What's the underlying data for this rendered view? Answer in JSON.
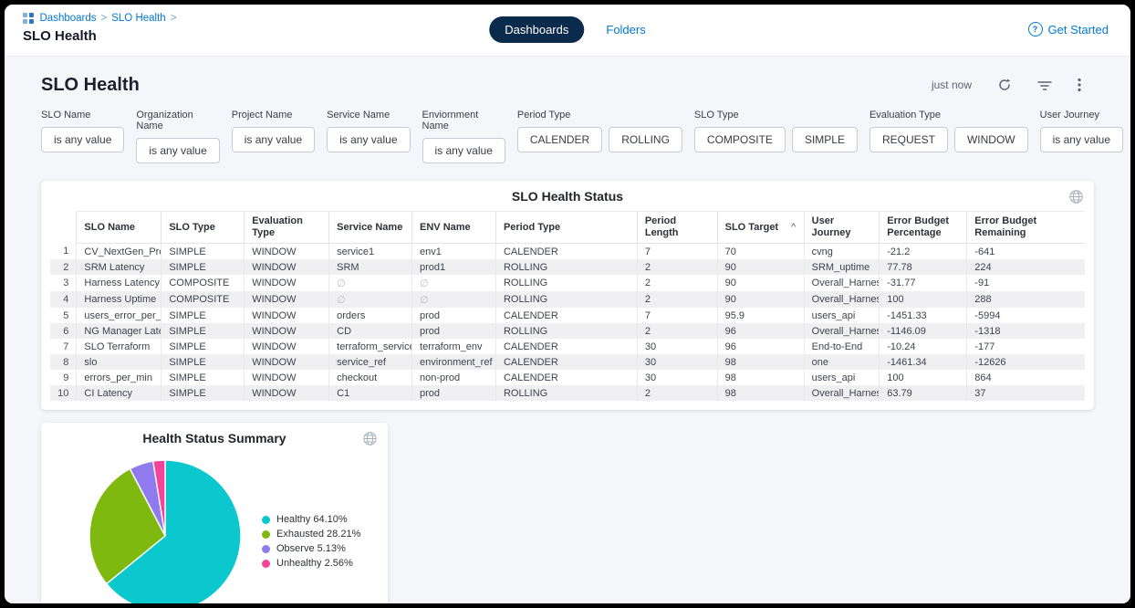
{
  "header": {
    "breadcrumb": {
      "items": [
        "Dashboards",
        "SLO Health"
      ],
      "separator": ">"
    },
    "page_title": "SLO Health",
    "tabs": [
      {
        "label": "Dashboards",
        "active": true
      },
      {
        "label": "Folders",
        "active": false
      }
    ],
    "get_started": "Get Started"
  },
  "toolbar": {
    "title": "SLO Health",
    "refreshed": "just now"
  },
  "filters": [
    {
      "label": "SLO Name",
      "buttons": [
        "is any value"
      ]
    },
    {
      "label": "Organization Name",
      "buttons": [
        "is any value"
      ]
    },
    {
      "label": "Project Name",
      "buttons": [
        "is any value"
      ]
    },
    {
      "label": "Service Name",
      "buttons": [
        "is any value"
      ]
    },
    {
      "label": "Enviornment Name",
      "buttons": [
        "is any value"
      ]
    },
    {
      "label": "Period Type",
      "buttons": [
        "CALENDER",
        "ROLLING"
      ]
    },
    {
      "label": "SLO Type",
      "buttons": [
        "COMPOSITE",
        "SIMPLE"
      ]
    },
    {
      "label": "Evaluation Type",
      "buttons": [
        "REQUEST",
        "WINDOW"
      ]
    },
    {
      "label": "User Journey",
      "buttons": [
        "is any value"
      ]
    }
  ],
  "table": {
    "title": "SLO Health Status",
    "columns": [
      "SLO Name",
      "SLO Type",
      "Evaluation Type",
      "Service Name",
      "ENV Name",
      "Period Type",
      "Period Length",
      "SLO Target",
      "User Journey",
      "Error Budget Percentage",
      "Error Budget Remaining"
    ],
    "sort": {
      "column": "SLO Target",
      "indicator": "^"
    },
    "null_symbol": "∅",
    "rows": [
      [
        "CV_NextGen_Prod",
        "SIMPLE",
        "WINDOW",
        "service1",
        "env1",
        "CALENDER",
        "7",
        "70",
        "cvng",
        "-21.2",
        "-641"
      ],
      [
        "SRM Latency",
        "SIMPLE",
        "WINDOW",
        "SRM",
        "prod1",
        "ROLLING",
        "2",
        "90",
        "SRM_uptime",
        "77.78",
        "224"
      ],
      [
        "Harness Latency",
        "COMPOSITE",
        "WINDOW",
        "∅",
        "∅",
        "ROLLING",
        "2",
        "90",
        "Overall_Harness",
        "-31.77",
        "-91"
      ],
      [
        "Harness Uptime",
        "COMPOSITE",
        "WINDOW",
        "∅",
        "∅",
        "ROLLING",
        "2",
        "90",
        "Overall_Harness",
        "100",
        "288"
      ],
      [
        "users_error_per_min",
        "SIMPLE",
        "WINDOW",
        "orders",
        "prod",
        "CALENDER",
        "7",
        "95.9",
        "users_api",
        "-1451.33",
        "-5994"
      ],
      [
        "NG Manager Latency",
        "SIMPLE",
        "WINDOW",
        "CD",
        "prod",
        "ROLLING",
        "2",
        "96",
        "Overall_Harness",
        "-1146.09",
        "-1318"
      ],
      [
        "SLO Terraform",
        "SIMPLE",
        "WINDOW",
        "terraform_service",
        "terraform_env",
        "CALENDER",
        "30",
        "96",
        "End-to-End",
        "-10.24",
        "-177"
      ],
      [
        "slo",
        "SIMPLE",
        "WINDOW",
        "service_ref",
        "environment_ref",
        "CALENDER",
        "30",
        "98",
        "one",
        "-1461.34",
        "-12626"
      ],
      [
        "errors_per_min",
        "SIMPLE",
        "WINDOW",
        "checkout",
        "non-prod",
        "CALENDER",
        "30",
        "98",
        "users_api",
        "100",
        "864"
      ],
      [
        "CI Latency",
        "SIMPLE",
        "WINDOW",
        "C1",
        "prod",
        "ROLLING",
        "2",
        "98",
        "Overall_Harness",
        "63.79",
        "37"
      ]
    ]
  },
  "chart_data": {
    "type": "pie",
    "title": "Health Status Summary",
    "labels": [
      "Healthy",
      "Exhausted",
      "Observe",
      "Unhealthy"
    ],
    "values": [
      64.1,
      28.21,
      5.13,
      2.56
    ],
    "colors": [
      "#0bc8ce",
      "#7fb80e",
      "#8f7aee",
      "#f6449c"
    ],
    "legend_position": "right",
    "start_angle": "top, clockwise"
  }
}
